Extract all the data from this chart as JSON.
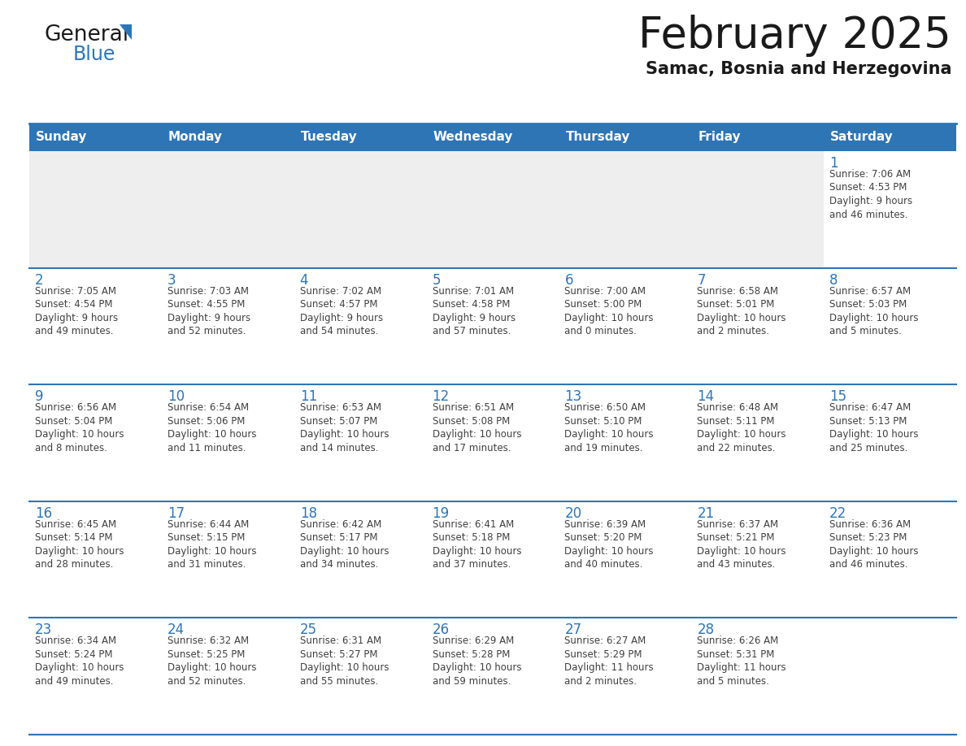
{
  "title": "February 2025",
  "subtitle": "Samac, Bosnia and Herzegovina",
  "header_bg_color": "#2E75B6",
  "header_text_color": "#FFFFFF",
  "day_names": [
    "Sunday",
    "Monday",
    "Tuesday",
    "Wednesday",
    "Thursday",
    "Friday",
    "Saturday"
  ],
  "cell_bg_color": "#FFFFFF",
  "alt_cell_bg_color": "#EEEEEE",
  "border_color": "#2E75B6",
  "day_num_color": "#2E75B6",
  "text_color": "#404040",
  "calendar": [
    [
      {
        "day": null,
        "info": null
      },
      {
        "day": null,
        "info": null
      },
      {
        "day": null,
        "info": null
      },
      {
        "day": null,
        "info": null
      },
      {
        "day": null,
        "info": null
      },
      {
        "day": null,
        "info": null
      },
      {
        "day": 1,
        "info": "Sunrise: 7:06 AM\nSunset: 4:53 PM\nDaylight: 9 hours\nand 46 minutes."
      }
    ],
    [
      {
        "day": 2,
        "info": "Sunrise: 7:05 AM\nSunset: 4:54 PM\nDaylight: 9 hours\nand 49 minutes."
      },
      {
        "day": 3,
        "info": "Sunrise: 7:03 AM\nSunset: 4:55 PM\nDaylight: 9 hours\nand 52 minutes."
      },
      {
        "day": 4,
        "info": "Sunrise: 7:02 AM\nSunset: 4:57 PM\nDaylight: 9 hours\nand 54 minutes."
      },
      {
        "day": 5,
        "info": "Sunrise: 7:01 AM\nSunset: 4:58 PM\nDaylight: 9 hours\nand 57 minutes."
      },
      {
        "day": 6,
        "info": "Sunrise: 7:00 AM\nSunset: 5:00 PM\nDaylight: 10 hours\nand 0 minutes."
      },
      {
        "day": 7,
        "info": "Sunrise: 6:58 AM\nSunset: 5:01 PM\nDaylight: 10 hours\nand 2 minutes."
      },
      {
        "day": 8,
        "info": "Sunrise: 6:57 AM\nSunset: 5:03 PM\nDaylight: 10 hours\nand 5 minutes."
      }
    ],
    [
      {
        "day": 9,
        "info": "Sunrise: 6:56 AM\nSunset: 5:04 PM\nDaylight: 10 hours\nand 8 minutes."
      },
      {
        "day": 10,
        "info": "Sunrise: 6:54 AM\nSunset: 5:06 PM\nDaylight: 10 hours\nand 11 minutes."
      },
      {
        "day": 11,
        "info": "Sunrise: 6:53 AM\nSunset: 5:07 PM\nDaylight: 10 hours\nand 14 minutes."
      },
      {
        "day": 12,
        "info": "Sunrise: 6:51 AM\nSunset: 5:08 PM\nDaylight: 10 hours\nand 17 minutes."
      },
      {
        "day": 13,
        "info": "Sunrise: 6:50 AM\nSunset: 5:10 PM\nDaylight: 10 hours\nand 19 minutes."
      },
      {
        "day": 14,
        "info": "Sunrise: 6:48 AM\nSunset: 5:11 PM\nDaylight: 10 hours\nand 22 minutes."
      },
      {
        "day": 15,
        "info": "Sunrise: 6:47 AM\nSunset: 5:13 PM\nDaylight: 10 hours\nand 25 minutes."
      }
    ],
    [
      {
        "day": 16,
        "info": "Sunrise: 6:45 AM\nSunset: 5:14 PM\nDaylight: 10 hours\nand 28 minutes."
      },
      {
        "day": 17,
        "info": "Sunrise: 6:44 AM\nSunset: 5:15 PM\nDaylight: 10 hours\nand 31 minutes."
      },
      {
        "day": 18,
        "info": "Sunrise: 6:42 AM\nSunset: 5:17 PM\nDaylight: 10 hours\nand 34 minutes."
      },
      {
        "day": 19,
        "info": "Sunrise: 6:41 AM\nSunset: 5:18 PM\nDaylight: 10 hours\nand 37 minutes."
      },
      {
        "day": 20,
        "info": "Sunrise: 6:39 AM\nSunset: 5:20 PM\nDaylight: 10 hours\nand 40 minutes."
      },
      {
        "day": 21,
        "info": "Sunrise: 6:37 AM\nSunset: 5:21 PM\nDaylight: 10 hours\nand 43 minutes."
      },
      {
        "day": 22,
        "info": "Sunrise: 6:36 AM\nSunset: 5:23 PM\nDaylight: 10 hours\nand 46 minutes."
      }
    ],
    [
      {
        "day": 23,
        "info": "Sunrise: 6:34 AM\nSunset: 5:24 PM\nDaylight: 10 hours\nand 49 minutes."
      },
      {
        "day": 24,
        "info": "Sunrise: 6:32 AM\nSunset: 5:25 PM\nDaylight: 10 hours\nand 52 minutes."
      },
      {
        "day": 25,
        "info": "Sunrise: 6:31 AM\nSunset: 5:27 PM\nDaylight: 10 hours\nand 55 minutes."
      },
      {
        "day": 26,
        "info": "Sunrise: 6:29 AM\nSunset: 5:28 PM\nDaylight: 10 hours\nand 59 minutes."
      },
      {
        "day": 27,
        "info": "Sunrise: 6:27 AM\nSunset: 5:29 PM\nDaylight: 11 hours\nand 2 minutes."
      },
      {
        "day": 28,
        "info": "Sunrise: 6:26 AM\nSunset: 5:31 PM\nDaylight: 11 hours\nand 5 minutes."
      },
      {
        "day": null,
        "info": null
      }
    ]
  ],
  "title_fontsize": 38,
  "subtitle_fontsize": 15,
  "header_fontsize": 11,
  "day_num_fontsize": 12,
  "info_fontsize": 8.5
}
